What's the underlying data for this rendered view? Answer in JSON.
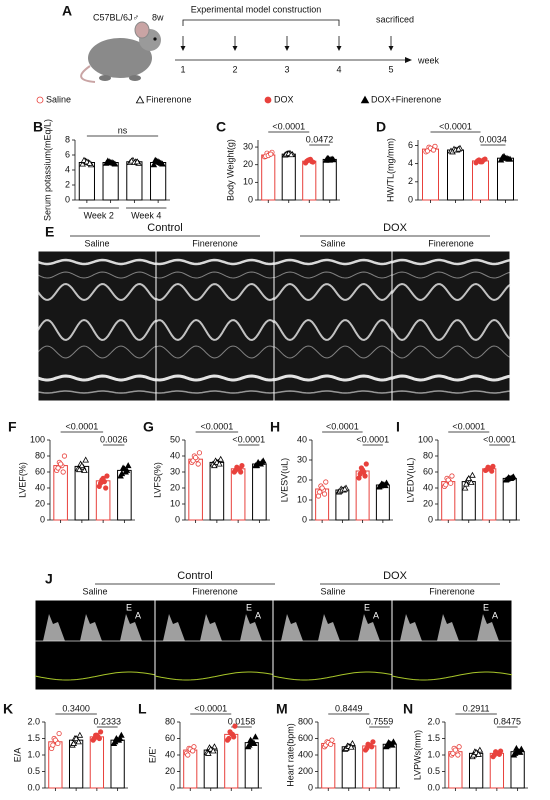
{
  "timeline": {
    "label": "A",
    "strain": "C57BL/6J♂",
    "age": "8w",
    "title": "Experimental model construction",
    "weeks": [
      1,
      2,
      3,
      4,
      5
    ],
    "end": "sacrificed",
    "unit": "week"
  },
  "groups": [
    {
      "name": "Saline",
      "marker": "circle-open",
      "color": "#e8413c"
    },
    {
      "name": "Finerenone",
      "marker": "triangle-open",
      "color": "#000000"
    },
    {
      "name": "DOX",
      "marker": "circle-filled",
      "color": "#e8413c"
    },
    {
      "name": "DOX+Finerenone",
      "marker": "triangle-filled",
      "color": "#000000"
    }
  ],
  "echo": {
    "label": "E",
    "groups": [
      "Control",
      "DOX"
    ],
    "panels": [
      "Saline",
      "Finerenone",
      "Saline",
      "Finerenone"
    ]
  },
  "doppler": {
    "label": "J",
    "groups": [
      "Control",
      "DOX"
    ],
    "panels": [
      "Saline",
      "Finerenone",
      "Saline",
      "Finerenone"
    ],
    "peak_labels": [
      "E",
      "A"
    ]
  },
  "chart_data": [
    {
      "type": "bar",
      "label": "B",
      "ylabel": "Serum potassium(mEq/L)",
      "categories": [
        null,
        null,
        null,
        null
      ],
      "group_labels": [
        "Week 2",
        "Week 4"
      ],
      "values": [
        5.0,
        5.0,
        5.1,
        5.0
      ],
      "points": [
        [
          4.8,
          5.2,
          5.0,
          4.7,
          5.3,
          5.1,
          4.9
        ],
        [
          4.9,
          5.1,
          5.0,
          4.8,
          5.2,
          5.0,
          4.9
        ],
        [
          5.0,
          5.3,
          5.1,
          4.9,
          5.2,
          5.0,
          5.1
        ],
        [
          4.7,
          5.2,
          5.0,
          4.8,
          5.3,
          5.1,
          4.9
        ]
      ],
      "colors": [
        "#000000",
        "#000000",
        "#000000",
        "#000000"
      ],
      "markers": [
        "triangle-open",
        "triangle-filled",
        "triangle-open",
        "triangle-filled"
      ],
      "annotations": [
        "ns"
      ],
      "ylim": [
        0,
        8
      ],
      "yticks": [
        0,
        2,
        4,
        6,
        8
      ]
    },
    {
      "type": "bar",
      "label": "C",
      "ylabel": "Body Weight(g)",
      "categories": [
        null,
        null,
        null,
        null
      ],
      "values": [
        25.5,
        26,
        22,
        23
      ],
      "points": [
        [
          24.5,
          26.5,
          25.8,
          27,
          24.8,
          25.2,
          26
        ],
        [
          25.5,
          26.2,
          26.5,
          25.8,
          26,
          26.4,
          25.7
        ],
        [
          21,
          22.5,
          23,
          21.5,
          22,
          22.8,
          21.8
        ],
        [
          22.5,
          23.5,
          23,
          22.8,
          23.6,
          22.6,
          23.2
        ]
      ],
      "annotations": [
        "<0.0001",
        "0.0472"
      ],
      "ylim": [
        0,
        34
      ],
      "yticks": [
        0,
        10,
        20,
        30
      ]
    },
    {
      "type": "bar",
      "label": "D",
      "ylabel": "HW/TL(mg/mm)",
      "categories": [
        null,
        null,
        null,
        null
      ],
      "values": [
        5.6,
        5.5,
        4.3,
        4.6
      ],
      "points": [
        [
          5.3,
          5.8,
          5.6,
          5.9,
          5.4,
          5.7,
          5.5
        ],
        [
          5.4,
          5.6,
          5.5,
          5.7,
          5.3,
          5.5,
          5.6
        ],
        [
          4.1,
          4.4,
          4.2,
          4.5,
          4.3,
          4.2,
          4.4
        ],
        [
          4.4,
          4.8,
          4.6,
          4.5,
          4.7,
          4.6,
          4.5
        ]
      ],
      "annotations": [
        "<0.0001",
        "0.0034"
      ],
      "ylim": [
        0,
        6.6
      ],
      "yticks": [
        0,
        2,
        4,
        6
      ]
    },
    {
      "type": "bar",
      "label": "F",
      "ylabel": "LVEF(%)",
      "categories": [
        null,
        null,
        null,
        null
      ],
      "values": [
        68,
        67,
        49,
        62
      ],
      "points": [
        [
          62,
          72,
          68,
          80,
          65,
          70,
          60
        ],
        [
          64,
          70,
          66,
          75,
          63,
          68,
          62
        ],
        [
          42,
          50,
          48,
          55,
          46,
          52,
          40
        ],
        [
          55,
          65,
          60,
          68,
          58,
          64,
          62
        ]
      ],
      "annotations": [
        "<0.0001",
        "0.0026"
      ],
      "ylim": [
        0,
        100
      ],
      "yticks": [
        0,
        20,
        40,
        60,
        80,
        100
      ]
    },
    {
      "type": "bar",
      "label": "G",
      "ylabel": "LVFS(%)",
      "categories": [
        null,
        null,
        null,
        null
      ],
      "values": [
        38,
        36,
        32,
        35
      ],
      "points": [
        [
          36,
          40,
          38,
          42,
          37,
          39,
          35
        ],
        [
          35,
          37,
          36,
          38,
          34,
          36,
          35
        ],
        [
          30,
          33,
          32,
          34,
          31,
          32,
          30
        ],
        [
          34,
          36,
          35,
          37,
          34,
          35,
          36
        ]
      ],
      "annotations": [
        "<0.0001",
        "<0.0001"
      ],
      "ylim": [
        0,
        50
      ],
      "yticks": [
        0,
        10,
        20,
        30,
        40,
        50
      ]
    },
    {
      "type": "bar",
      "label": "H",
      "ylabel": "LVESV(uL)",
      "categories": [
        null,
        null,
        null,
        null
      ],
      "values": [
        15.5,
        15,
        24.5,
        17.5
      ],
      "points": [
        [
          12,
          17,
          15,
          19,
          14,
          16,
          13
        ],
        [
          14,
          15.5,
          15,
          16,
          14.5,
          15,
          15.5
        ],
        [
          21,
          26,
          24,
          28,
          23,
          25,
          22
        ],
        [
          16.5,
          18,
          17.5,
          18.5,
          17,
          17.8,
          17.2
        ]
      ],
      "annotations": [
        "<0.0001",
        "<0.0001"
      ],
      "ylim": [
        0,
        40
      ],
      "yticks": [
        0,
        10,
        20,
        30,
        40
      ]
    },
    {
      "type": "bar",
      "label": "I",
      "ylabel": "LVEDV(uL)",
      "categories": [
        null,
        null,
        null,
        null
      ],
      "values": [
        48,
        48,
        64,
        52
      ],
      "points": [
        [
          42,
          52,
          48,
          55,
          44,
          50,
          46
        ],
        [
          40,
          50,
          48,
          56,
          45,
          52,
          47
        ],
        [
          62,
          66,
          64,
          67,
          63,
          65,
          61
        ],
        [
          50,
          53,
          52,
          54,
          51,
          52,
          53
        ]
      ],
      "annotations": [
        "<0.0001",
        "<0.0001"
      ],
      "ylim": [
        0,
        100
      ],
      "yticks": [
        0,
        20,
        40,
        60,
        80,
        100
      ]
    },
    {
      "type": "bar",
      "label": "K",
      "ylabel": "E/A",
      "categories": [
        null,
        null,
        null,
        null
      ],
      "values": [
        1.4,
        1.45,
        1.55,
        1.45
      ],
      "points": [
        [
          1.2,
          1.5,
          1.4,
          1.65,
          1.3,
          1.45,
          1.35
        ],
        [
          1.3,
          1.5,
          1.45,
          1.6,
          1.35,
          1.5,
          1.4
        ],
        [
          1.45,
          1.6,
          1.55,
          1.7,
          1.5,
          1.6,
          1.5
        ],
        [
          1.35,
          1.5,
          1.45,
          1.6,
          1.4,
          1.45,
          1.5
        ]
      ],
      "annotations": [
        "0.3400",
        "0.2333"
      ],
      "ylim": [
        0,
        2
      ],
      "yticks": [
        {
          "value": 0,
          "label": "0.0"
        },
        0.5,
        {
          "value": 1,
          "label": "1.0"
        },
        1.5,
        {
          "value": 2,
          "label": "2.0"
        }
      ]
    },
    {
      "type": "bar",
      "label": "L",
      "ylabel": "E/E'",
      "categories": [
        null,
        null,
        null,
        null
      ],
      "values": [
        46,
        46,
        65,
        55
      ],
      "points": [
        [
          42,
          48,
          46,
          50,
          40,
          47,
          45
        ],
        [
          43,
          49,
          46,
          50,
          42,
          47,
          45
        ],
        [
          58,
          68,
          65,
          75,
          60,
          66,
          62
        ],
        [
          50,
          58,
          55,
          62,
          52,
          56,
          54
        ]
      ],
      "annotations": [
        "<0.0001",
        "0.0158"
      ],
      "ylim": [
        0,
        80
      ],
      "yticks": [
        0,
        20,
        40,
        60,
        80
      ]
    },
    {
      "type": "bar",
      "label": "M",
      "ylabel": "Heart rate(bpm)",
      "categories": [
        null,
        null,
        null,
        null
      ],
      "values": [
        540,
        500,
        510,
        530
      ],
      "points": [
        [
          500,
          560,
          540,
          580,
          520,
          550,
          530
        ],
        [
          470,
          510,
          500,
          540,
          480,
          505,
          495
        ],
        [
          460,
          530,
          510,
          560,
          480,
          520,
          500
        ],
        [
          500,
          550,
          530,
          560,
          510,
          540,
          520
        ]
      ],
      "annotations": [
        "0.8449",
        "0.7559"
      ],
      "ylim": [
        0,
        800
      ],
      "yticks": [
        0,
        200,
        400,
        600,
        800
      ]
    },
    {
      "type": "bar",
      "label": "N",
      "ylabel": "LVPWs(mm)",
      "categories": [
        null,
        null,
        null,
        null
      ],
      "values": [
        1.1,
        1.05,
        1.05,
        1.1
      ],
      "points": [
        [
          1.0,
          1.2,
          1.1,
          1.25,
          1.05,
          1.15,
          1.0
        ],
        [
          0.95,
          1.1,
          1.05,
          1.15,
          1.0,
          1.08,
          1.02
        ],
        [
          0.95,
          1.1,
          1.05,
          1.12,
          1.0,
          1.06,
          1.02
        ],
        [
          1.0,
          1.2,
          1.1,
          1.18,
          1.05,
          1.12,
          1.08
        ]
      ],
      "annotations": [
        "0.2911",
        "0.8475"
      ],
      "ylim": [
        0,
        2
      ],
      "yticks": [
        {
          "value": 0,
          "label": "0.0"
        },
        0.5,
        {
          "value": 1,
          "label": "1.0"
        },
        1.5,
        {
          "value": 2,
          "label": "2.0"
        }
      ]
    }
  ]
}
